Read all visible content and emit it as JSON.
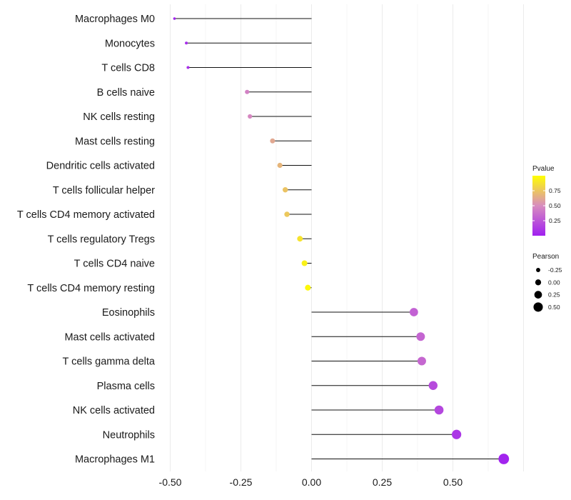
{
  "chart_data": {
    "type": "lollipop",
    "title": "",
    "xlabel": "",
    "ylabel": "",
    "xlim": [
      -0.5,
      0.7
    ],
    "x_ticks": [
      "-0.50",
      "-0.25",
      "0.00",
      "0.25",
      "0.50"
    ],
    "categories": [
      "Macrophages M0",
      "Monocytes",
      "T cells CD8",
      "B cells naive",
      "NK cells resting",
      "Mast cells resting",
      "Dendritic cells activated",
      "T cells follicular helper",
      "T cells CD4 memory activated",
      "T cells regulatory  Tregs ",
      "T cells CD4 naive",
      "T cells CD4 memory resting",
      "Eosinophils",
      "Mast cells activated",
      "T cells gamma delta",
      "Plasma cells",
      "NK cells activated",
      "Neutrophils",
      "Macrophages M1"
    ],
    "pearson": [
      -0.485,
      -0.443,
      -0.437,
      -0.228,
      -0.218,
      -0.138,
      -0.112,
      -0.093,
      -0.087,
      -0.041,
      -0.025,
      -0.013,
      0.362,
      0.386,
      0.39,
      0.43,
      0.451,
      0.513,
      0.68
    ],
    "pvalue": [
      0.02,
      0.06,
      0.07,
      0.45,
      0.48,
      0.62,
      0.68,
      0.74,
      0.76,
      0.88,
      0.94,
      0.97,
      0.3,
      0.32,
      0.33,
      0.2,
      0.18,
      0.1,
      0.02
    ],
    "color_legend": {
      "title": "Pvalue",
      "ticks": [
        "0.75",
        "0.50",
        "0.25"
      ],
      "low_color": "#a020f0",
      "mid_color": "#d88cbf",
      "high_color": "#ffff00"
    },
    "size_legend": {
      "title": "Pearson",
      "labels": [
        "-0.25",
        "0.00",
        "0.25",
        "0.50"
      ]
    }
  }
}
